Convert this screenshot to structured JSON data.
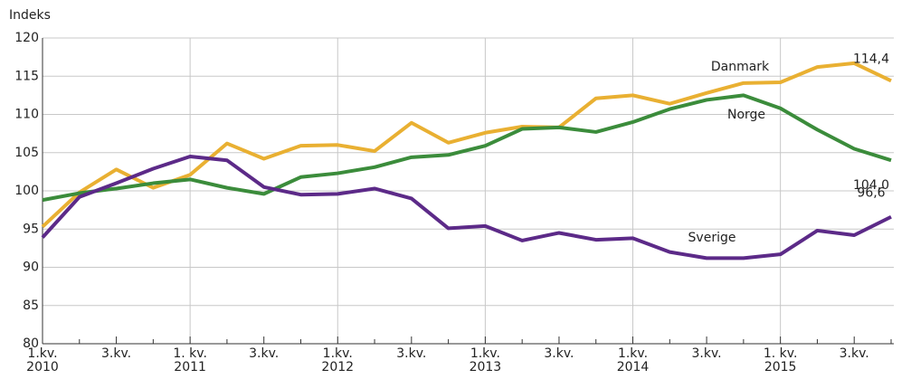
{
  "chart_data": {
    "type": "line",
    "y_label": "Indeks",
    "categories": [
      "1.kv.\n2010",
      null,
      "3.kv.",
      null,
      "1. kv.\n2011",
      null,
      "3.kv.",
      null,
      "1.kv.\n2012",
      null,
      "3.kv.",
      null,
      "1.kv.\n2013",
      null,
      "3.kv.",
      null,
      "1.kv.\n2014",
      null,
      "3.kv.",
      null,
      "1. kv.\n2015",
      null,
      "3.kv.",
      null
    ],
    "series": [
      {
        "name": "Danmark",
        "color": "#e9b032",
        "values": [
          95.3,
          99.8,
          102.8,
          100.4,
          102.1,
          106.2,
          104.2,
          105.9,
          106.0,
          105.2,
          108.9,
          106.3,
          107.6,
          108.4,
          108.3,
          112.1,
          112.5,
          111.4,
          112.8,
          114.1,
          114.2,
          116.2,
          116.7,
          114.4
        ],
        "value_labels": [
          null,
          null,
          null,
          null,
          null,
          null,
          null,
          null,
          null,
          null,
          null,
          null,
          null,
          null,
          null,
          null,
          null,
          null,
          null,
          null,
          null,
          null,
          null,
          "114,4"
        ]
      },
      {
        "name": "Norge",
        "color": "#3b8c3b",
        "values": [
          98.8,
          99.7,
          100.3,
          101.0,
          101.5,
          100.4,
          99.6,
          101.8,
          102.3,
          103.1,
          104.4,
          104.7,
          105.9,
          108.1,
          108.3,
          107.7,
          109.0,
          110.7,
          111.9,
          112.5,
          110.8,
          108.0,
          105.5,
          104.0
        ],
        "value_labels": [
          null,
          null,
          null,
          null,
          null,
          null,
          null,
          null,
          null,
          null,
          null,
          null,
          null,
          null,
          null,
          null,
          null,
          null,
          null,
          null,
          null,
          null,
          null,
          "104,0"
        ]
      },
      {
        "name": "Sverige",
        "color": "#5c2a88",
        "values": [
          93.9,
          99.2,
          101.0,
          102.9,
          104.5,
          104.0,
          100.5,
          99.5,
          99.6,
          100.3,
          99.0,
          95.1,
          95.4,
          93.5,
          94.5,
          93.6,
          93.8,
          92.0,
          91.2,
          91.2,
          91.7,
          94.8,
          94.2,
          96.6
        ],
        "value_labels": [
          null,
          null,
          null,
          null,
          null,
          null,
          null,
          null,
          null,
          null,
          null,
          null,
          null,
          null,
          null,
          null,
          null,
          null,
          null,
          null,
          null,
          null,
          null,
          "96,6"
        ]
      }
    ],
    "ylim": [
      80,
      120
    ],
    "yticks": [
      80,
      85,
      90,
      95,
      100,
      105,
      110,
      115,
      120
    ],
    "grid": true
  }
}
